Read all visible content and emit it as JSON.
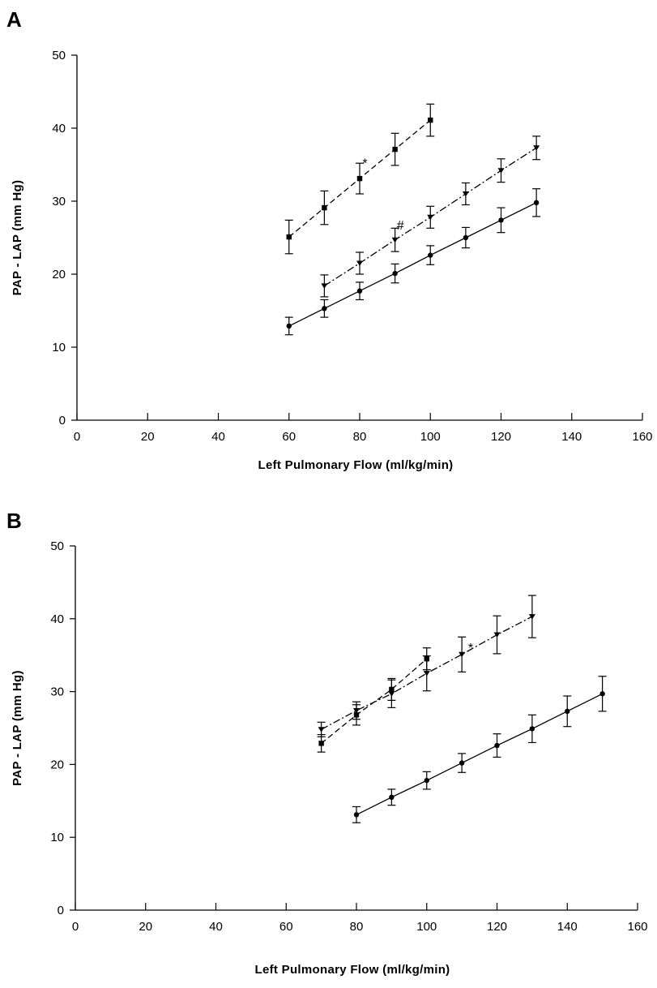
{
  "chart_data": [
    {
      "type": "line",
      "panel_label": "A",
      "xlabel": "Left Pulmonary Flow (ml/kg/min)",
      "ylabel": "PAP - LAP (mm Hg)",
      "xlim": [
        0,
        160
      ],
      "ylim": [
        0,
        50
      ],
      "xticks": [
        "0",
        "20",
        "40",
        "60",
        "80",
        "100",
        "120",
        "140",
        "160"
      ],
      "yticks": [
        "0",
        "10",
        "20",
        "30",
        "40",
        "50"
      ],
      "grid": false,
      "series": [
        {
          "marker": "square",
          "line_style": "dashed",
          "x": [
            60,
            70,
            80,
            90,
            100
          ],
          "y": [
            25.1,
            29.1,
            33.1,
            37.1,
            41.1
          ],
          "error": [
            2.3,
            2.3,
            2.1,
            2.2,
            2.2
          ]
        },
        {
          "marker": "triangle-down",
          "line_style": "dash-dot",
          "x": [
            70,
            80,
            90,
            100,
            110,
            120,
            130
          ],
          "y": [
            18.4,
            21.5,
            24.7,
            27.8,
            31.0,
            34.2,
            37.3
          ],
          "error": [
            1.5,
            1.5,
            1.6,
            1.5,
            1.5,
            1.6,
            1.6
          ]
        },
        {
          "marker": "circle",
          "line_style": "solid",
          "x": [
            60,
            70,
            80,
            90,
            100,
            110,
            120,
            130
          ],
          "y": [
            12.9,
            15.3,
            17.7,
            20.1,
            22.6,
            25.0,
            27.4,
            29.8
          ],
          "error": [
            1.2,
            1.2,
            1.2,
            1.3,
            1.3,
            1.4,
            1.7,
            1.9
          ]
        }
      ],
      "annotations": [
        {
          "text": "*",
          "x": 81.5,
          "y": 35.3
        },
        {
          "text": "#",
          "x": 91.5,
          "y": 26.8
        }
      ]
    },
    {
      "type": "line",
      "panel_label": "B",
      "xlabel": "Left Pulmonary Flow (ml/kg/min)",
      "ylabel": "PAP - LAP (mm Hg)",
      "xlim": [
        0,
        160
      ],
      "ylim": [
        0,
        50
      ],
      "xticks": [
        "0",
        "20",
        "40",
        "60",
        "80",
        "100",
        "120",
        "140",
        "160"
      ],
      "yticks": [
        "0",
        "10",
        "20",
        "30",
        "40",
        "50"
      ],
      "grid": false,
      "series": [
        {
          "marker": "square",
          "line_style": "dashed",
          "x": [
            70,
            80,
            90,
            100
          ],
          "y": [
            22.9,
            26.8,
            30.3,
            34.5
          ],
          "error": [
            1.2,
            1.4,
            1.5,
            1.5
          ]
        },
        {
          "marker": "triangle-down",
          "line_style": "dash-dot",
          "x": [
            70,
            80,
            90,
            100,
            110,
            120,
            130
          ],
          "y": [
            24.8,
            27.4,
            29.7,
            32.5,
            35.1,
            37.8,
            40.3
          ],
          "error": [
            1.0,
            1.2,
            1.9,
            2.4,
            2.4,
            2.6,
            2.9
          ]
        },
        {
          "marker": "circle",
          "line_style": "solid",
          "x": [
            80,
            90,
            100,
            110,
            120,
            130,
            140,
            150
          ],
          "y": [
            13.1,
            15.5,
            17.8,
            20.2,
            22.6,
            24.9,
            27.3,
            29.7
          ],
          "error": [
            1.1,
            1.1,
            1.2,
            1.3,
            1.6,
            1.9,
            2.1,
            2.4
          ]
        }
      ],
      "annotations": [
        {
          "text": "*",
          "x": 112.5,
          "y": 36.1
        }
      ]
    }
  ]
}
